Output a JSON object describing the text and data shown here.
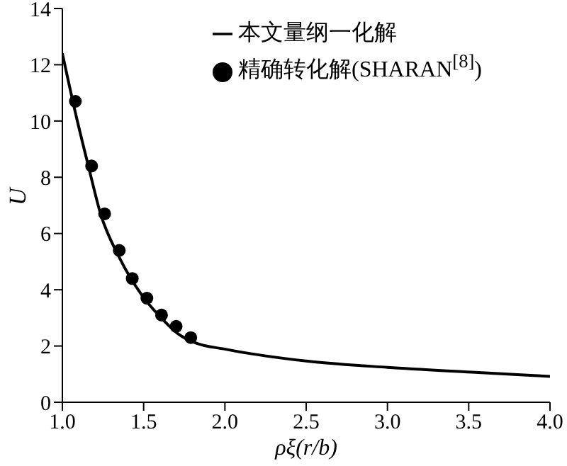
{
  "chart_data": {
    "type": "line",
    "xlabel": "ρξ(r/b)",
    "ylabel": "U",
    "xlim": [
      1.0,
      4.0
    ],
    "xticks": [
      {
        "value": 1,
        "label": "1.0"
      },
      {
        "value": 1.5,
        "label": "1.5"
      },
      {
        "value": 2,
        "label": "2.0"
      },
      {
        "value": 2.5,
        "label": "2.5"
      },
      {
        "value": 3,
        "label": "3.0"
      },
      {
        "value": 3.5,
        "label": "3.5"
      },
      {
        "value": 4,
        "label": "4.0"
      }
    ],
    "ylim": [
      0,
      14
    ],
    "yticks": [
      0,
      2,
      4,
      6,
      8,
      10,
      12,
      14
    ],
    "grid": false,
    "legend": "top right",
    "series": [
      {
        "name": "本文量纲一化解",
        "color": "#000000",
        "marker": "none",
        "line_style": "solid",
        "x": [
          1.0,
          1.08,
          1.16,
          1.235,
          1.35,
          1.49,
          1.6,
          1.72,
          1.81,
          2.01,
          2.51,
          3.0,
          3.52,
          4.0
        ],
        "values": [
          12.4,
          10.3,
          8.4,
          6.7,
          5.15,
          3.8,
          3.05,
          2.4,
          2.13,
          1.88,
          1.46,
          1.24,
          1.07,
          0.92
        ]
      },
      {
        "name": "精确转化解(SHARAN$^{[8]}$)",
        "type": "scatter",
        "color": "#000000",
        "marker": "circle",
        "x": [
          1.08,
          1.18,
          1.26,
          1.35,
          1.43,
          1.52,
          1.61,
          1.7,
          1.79
        ],
        "values": [
          10.7,
          8.4,
          6.7,
          5.4,
          4.4,
          3.7,
          3.1,
          2.7,
          2.3
        ]
      }
    ]
  }
}
